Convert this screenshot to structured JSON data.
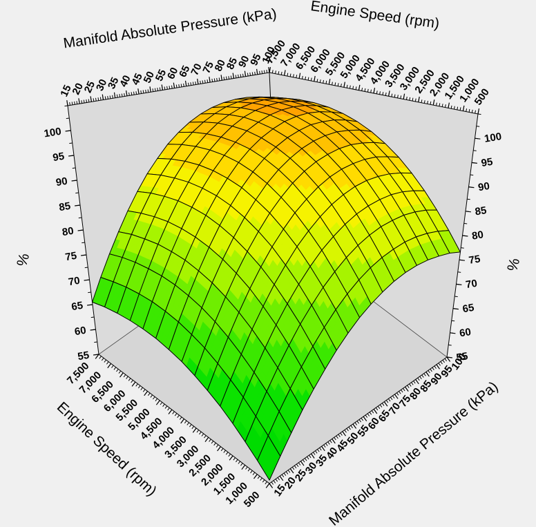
{
  "page": {
    "background": "#F0F0F0"
  },
  "chart": {
    "kind": "3d-surface-plot",
    "axis_titles": {
      "map_top": "Manifold Absolute Pressure (kPa)",
      "rpm_top": "Engine Speed (rpm)",
      "rpm_bottom": "Engine Speed (rpm)",
      "map_bottom": "Manifold Absolute Pressure (kPa)",
      "z_left": "%",
      "z_right": "%"
    }
  },
  "chart_data": {
    "type": "heatmap",
    "surface": true,
    "title": "",
    "x": {
      "name": "Manifold Absolute Pressure (kPa)",
      "units": "kPa",
      "values": [
        15,
        20,
        25,
        30,
        35,
        40,
        45,
        50,
        55,
        60,
        65,
        70,
        75,
        80,
        85,
        90,
        95,
        100
      ],
      "tick_labels": [
        "15",
        "20",
        "25",
        "30",
        "35",
        "40",
        "45",
        "50",
        "55",
        "60",
        "65",
        "70",
        "75",
        "80",
        "85",
        "90",
        "95",
        "100"
      ],
      "minor_tick_step": 1,
      "range": [
        15,
        100
      ]
    },
    "y": {
      "name": "Engine Speed (rpm)",
      "units": "rpm",
      "values": [
        500,
        1000,
        1500,
        2000,
        2500,
        3000,
        3500,
        4000,
        4500,
        5000,
        5500,
        6000,
        6500,
        7000,
        7500
      ],
      "tick_labels": [
        "500",
        "1,000",
        "1,500",
        "2,000",
        "2,500",
        "3,000",
        "3,500",
        "4,000",
        "4,500",
        "5,000",
        "5,500",
        "6,000",
        "6,500",
        "7,000",
        "7,500"
      ],
      "minor_tick_step": 100,
      "range": [
        500,
        7500
      ]
    },
    "z": {
      "name": "%",
      "major_ticks": [
        55,
        60,
        65,
        70,
        75,
        80,
        85,
        90,
        95,
        100
      ],
      "minor_tick_step": 2.5,
      "range": [
        55,
        105
      ],
      "band_size": 5
    },
    "values_percent": [
      [
        55.5,
        58.0,
        60.5,
        63.0,
        65.3,
        67.5,
        69.6,
        71.5,
        73.2,
        74.6,
        75.8,
        76.8,
        77.5,
        77.9,
        78.0,
        77.8,
        77.4,
        76.6
      ],
      [
        57.1,
        59.8,
        62.5,
        65.1,
        67.6,
        70.0,
        72.2,
        74.3,
        76.1,
        77.7,
        79.0,
        80.0,
        80.7,
        81.2,
        81.3,
        81.1,
        80.6,
        79.8
      ],
      [
        58.6,
        61.5,
        64.4,
        67.2,
        69.9,
        72.5,
        74.8,
        77.0,
        78.9,
        80.6,
        82.0,
        83.1,
        83.9,
        84.3,
        84.5,
        84.3,
        83.8,
        82.9
      ],
      [
        60.1,
        63.2,
        66.2,
        69.2,
        72.1,
        74.8,
        77.3,
        79.6,
        81.7,
        83.4,
        84.9,
        86.1,
        86.9,
        87.4,
        87.6,
        87.4,
        86.8,
        85.9
      ],
      [
        61.5,
        64.7,
        67.9,
        71.1,
        74.1,
        77.0,
        79.6,
        82.1,
        84.2,
        86.1,
        87.7,
        88.9,
        89.8,
        90.3,
        90.4,
        90.2,
        89.6,
        88.7
      ],
      [
        62.7,
        66.1,
        69.5,
        72.8,
        76.0,
        79.0,
        81.8,
        84.3,
        86.6,
        88.5,
        90.2,
        91.5,
        92.4,
        92.9,
        93.1,
        92.9,
        92.2,
        91.3
      ],
      [
        63.8,
        67.4,
        70.9,
        74.3,
        77.6,
        80.7,
        83.6,
        86.3,
        88.6,
        90.7,
        92.4,
        93.7,
        94.6,
        95.2,
        95.4,
        95.1,
        94.5,
        93.5
      ],
      [
        64.8,
        68.4,
        72.1,
        75.6,
        79.0,
        82.2,
        85.2,
        87.9,
        90.4,
        92.5,
        94.2,
        95.6,
        96.6,
        97.2,
        97.4,
        97.1,
        96.5,
        95.4
      ],
      [
        65.5,
        69.3,
        73.0,
        76.6,
        80.1,
        83.4,
        86.5,
        89.3,
        91.8,
        93.9,
        95.7,
        97.1,
        98.1,
        98.8,
        98.9,
        98.7,
        98.0,
        96.9
      ],
      [
        66.1,
        69.9,
        73.7,
        77.4,
        80.9,
        84.3,
        87.4,
        90.2,
        92.8,
        95.0,
        96.8,
        98.2,
        99.3,
        99.9,
        100.1,
        99.8,
        99.1,
        98.0
      ],
      [
        66.4,
        70.3,
        74.1,
        77.8,
        81.4,
        84.8,
        87.9,
        90.8,
        93.4,
        95.6,
        97.5,
        98.9,
        100.0,
        100.6,
        100.8,
        100.5,
        99.8,
        98.7
      ],
      [
        66.5,
        70.4,
        74.2,
        78.0,
        81.6,
        85.0,
        88.1,
        91.0,
        93.6,
        95.8,
        97.7,
        99.2,
        100.2,
        100.8,
        101.0,
        100.7,
        100.0,
        98.9
      ],
      [
        66.4,
        70.3,
        74.1,
        77.8,
        81.4,
        84.8,
        87.9,
        90.8,
        93.4,
        95.6,
        97.5,
        98.9,
        100.0,
        100.6,
        100.8,
        100.5,
        99.8,
        98.7
      ],
      [
        66.1,
        69.9,
        73.7,
        77.4,
        80.9,
        84.3,
        87.4,
        90.2,
        92.8,
        95.0,
        96.8,
        98.2,
        99.3,
        99.9,
        100.1,
        99.8,
        99.1,
        98.0
      ],
      [
        65.5,
        69.3,
        73.0,
        76.6,
        80.1,
        83.4,
        86.5,
        89.2,
        91.8,
        93.9,
        95.7,
        97.1,
        98.1,
        98.7,
        98.9,
        98.7,
        98.0,
        96.9
      ]
    ],
    "palette_bands": [
      {
        "from": 55,
        "to": 60,
        "color": "#00DC00"
      },
      {
        "from": 60,
        "to": 65,
        "color": "#0CE200"
      },
      {
        "from": 65,
        "to": 70,
        "color": "#3BE800"
      },
      {
        "from": 70,
        "to": 75,
        "color": "#6FEE00"
      },
      {
        "from": 75,
        "to": 80,
        "color": "#A7F400"
      },
      {
        "from": 80,
        "to": 85,
        "color": "#D9F600"
      },
      {
        "from": 85,
        "to": 90,
        "color": "#F6F200"
      },
      {
        "from": 90,
        "to": 95,
        "color": "#FFDB00"
      },
      {
        "from": 95,
        "to": 100,
        "color": "#FFC100"
      },
      {
        "from": 100,
        "to": 105,
        "color": "#FFA300"
      }
    ],
    "colors": {
      "mesh_line": "#000000",
      "wall": "#DBDBDB",
      "floor": "#D6D6D6",
      "background": "#F0F0F0",
      "axis": "#000000"
    }
  }
}
